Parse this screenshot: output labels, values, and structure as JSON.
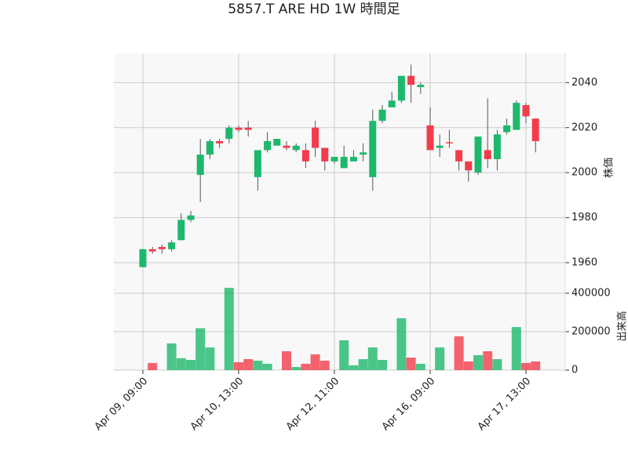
{
  "chart_data": {
    "type": "candlestick",
    "title": "5857.T ARE HD 1W 時間足",
    "y_label": "株価",
    "volume_label": "出来高",
    "categories": [
      "Apr 09, 09:00",
      null,
      null,
      null,
      null,
      null,
      null,
      null,
      null,
      null,
      "Apr 10, 13:00",
      null,
      null,
      null,
      null,
      null,
      null,
      null,
      null,
      null,
      "Apr 12, 11:00",
      null,
      null,
      null,
      null,
      null,
      null,
      null,
      null,
      null,
      "Apr 16, 09:00",
      null,
      null,
      null,
      null,
      null,
      null,
      null,
      null,
      null,
      "Apr 17, 13:00",
      null
    ],
    "open": [
      1958,
      1966,
      1967,
      1966,
      1970,
      1979,
      1999,
      2008,
      2014,
      2015,
      2020,
      2020,
      1998,
      2010,
      2012,
      2012,
      2010,
      2010,
      2020,
      2011,
      2005,
      2002,
      2005,
      2008,
      1998,
      2023,
      2029,
      2032,
      2043,
      2038,
      2021,
      2011,
      2013.5,
      2010,
      2005,
      2000,
      2010,
      2006,
      2018,
      2019,
      2030,
      2024
    ],
    "high": [
      1966,
      1967,
      1968,
      1970,
      1982,
      1983,
      2015,
      2015,
      2015,
      2021,
      2021,
      2023,
      2010,
      2018,
      2015,
      2014,
      2013,
      2013,
      2023,
      2011,
      2007,
      2012,
      2010,
      2013,
      2028,
      2030,
      2036,
      2043,
      2048,
      2040,
      2029,
      2017,
      2019,
      2010,
      2005,
      2016,
      2033,
      2019,
      2024,
      2032,
      2031,
      2024
    ],
    "low": [
      1958,
      1964,
      1964,
      1965,
      1970,
      1978,
      1987,
      2006,
      2011,
      2013,
      2018,
      2016,
      1992,
      2009,
      2012,
      2010,
      2009,
      2002,
      2007,
      2001,
      2004,
      2002,
      2005,
      2005,
      1992,
      2022,
      2029,
      2031,
      2031,
      2035,
      2010,
      2007,
      2011,
      2001,
      1996,
      1999,
      2002,
      2001,
      2017,
      2019,
      2022,
      2009
    ],
    "close": [
      1966,
      1965,
      1966,
      1969,
      1979,
      1981,
      2008,
      2014,
      2013,
      2020,
      2019,
      2019,
      2010,
      2014,
      2015,
      2011,
      2012,
      2005,
      2011,
      2005,
      2007,
      2007,
      2007,
      2009,
      2023,
      2028,
      2032,
      2043,
      2039,
      2039,
      2010,
      2012,
      2013,
      2005,
      2001,
      2016,
      2006,
      2017,
      2021,
      2031,
      2025,
      2014
    ],
    "volume": [
      0,
      37000,
      0,
      139000,
      62000,
      53000,
      218000,
      118000,
      0,
      428000,
      41000,
      57000,
      49000,
      33000,
      0,
      98000,
      16000,
      33000,
      82000,
      49000,
      0,
      155000,
      25000,
      57000,
      118000,
      53000,
      0,
      270000,
      65000,
      33000,
      0,
      118000,
      0,
      176000,
      45000,
      78000,
      98000,
      57000,
      0,
      224000,
      37000,
      45000
    ],
    "up_color": "#1db86c",
    "down_color": "#f23c4a",
    "ylim": [
      1952,
      2053
    ],
    "yticks": [
      1960,
      1980,
      2000,
      2020,
      2040
    ],
    "volume_ylim": [
      0,
      457000
    ],
    "volume_yticks": [
      0,
      200000,
      400000
    ],
    "grid": true
  }
}
